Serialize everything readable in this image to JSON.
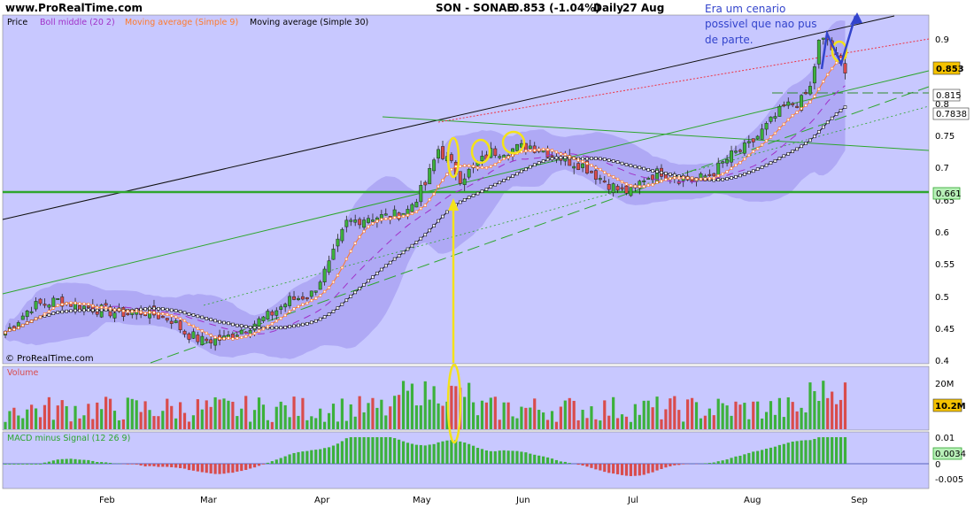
{
  "header": {
    "site": "www.ProRealTime.com",
    "instrument": "SON - SONAE",
    "quote": "0.853 (-1.04%)",
    "period": "Daily",
    "date": "27 Aug",
    "watermark": "© ProRealTime.com"
  },
  "annotation": {
    "lines": [
      "Era um cenario",
      "possivel que nao pus",
      "de parte."
    ]
  },
  "price_panel": {
    "legend": [
      "Price",
      "Boll middle (20 2)",
      "Moving average (Simple 9)",
      "Moving average (Simple 30)"
    ],
    "y_ticks": [
      "0.9",
      "0.85",
      "0.8",
      "0.75",
      "0.7",
      "0.65",
      "0.6",
      "0.55",
      "0.5",
      "0.45",
      "0.4"
    ],
    "badges": [
      "0.853",
      "0.815",
      "0.7838",
      "0.661"
    ]
  },
  "volume_panel": {
    "label": "Volume",
    "y_ticks": [
      "20M"
    ],
    "badge": "10.2M"
  },
  "macd_panel": {
    "label": "MACD minus Signal (12 26 9)",
    "y_ticks": [
      "0.01",
      "0",
      "-0.005"
    ],
    "badge": "0.0034"
  },
  "x_labels": [
    "Feb",
    "Mar",
    "Apr",
    "May",
    "Jun",
    "Jul",
    "Aug",
    "Sep"
  ],
  "colors": {
    "panel_bg": "#c8c8ff",
    "band": "#aaa3f3",
    "up": "#3cb13c",
    "down": "#d94c4c",
    "ma9": "#ff7a2a",
    "ma30": "#111111",
    "boll": "#a030c8",
    "annotation": "#3344cc",
    "highlight": "#f4e21a",
    "support": "#2ea62e"
  },
  "chart_data": {
    "type": "candlestick",
    "period": "Daily",
    "close": 0.853,
    "change_pct": -1.04,
    "ylim": [
      0.4,
      0.92
    ],
    "indicators": [
      "Boll middle (20 2)",
      "Moving average (Simple 9)",
      "Moving average (Simple 30)"
    ],
    "support_level": 0.661,
    "moving_average_values": {
      "ma30_last": 0.7838,
      "level_0815": 0.815
    },
    "volume": {
      "last": "10.2M",
      "ymax_label": "20M"
    },
    "macd_minus_signal": {
      "last": 0.0034,
      "ylim": [
        -0.006,
        0.011
      ]
    }
  }
}
